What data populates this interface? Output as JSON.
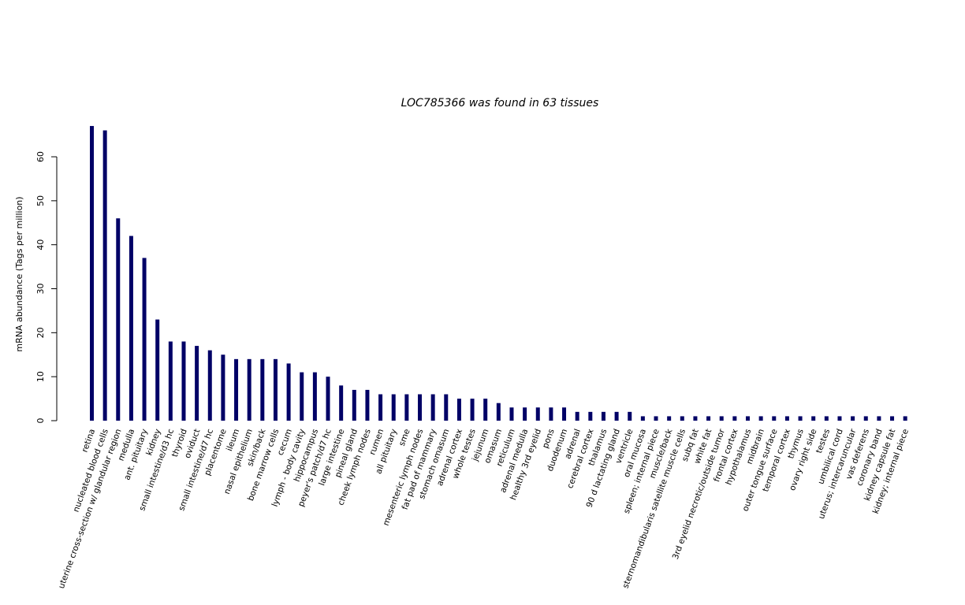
{
  "chart_data": {
    "type": "bar",
    "title": "LOC785366  was found in  63  tissues",
    "ylabel": "mRNA abundance (Tags per million)",
    "xlabel": "",
    "ylim": [
      0,
      67
    ],
    "yticks": [
      0,
      10,
      20,
      30,
      40,
      50,
      60
    ],
    "bar_color": "#000066",
    "grid": false,
    "categories": [
      "retina",
      "nucleated blood cells",
      "uterine cross-section w/ glandular region",
      "medulla",
      "ant. pituitary",
      "kidney",
      "small intestine/d3 hc",
      "thyroid",
      "oviduct",
      "small intestine/d7 hc",
      "placentome",
      "ileum",
      "nasal epithelium",
      "skin/back",
      "bone marrow cells",
      "cecum",
      "lymph - body cavity",
      "hippocampus",
      "peyer's patch/d7 hc",
      "large intestine",
      "pineal gland",
      "cheek lymph nodes",
      "rumen",
      "all pituitary",
      "sme",
      "mesenteric lymph nodes",
      "fat pad of mammary",
      "stomach omasum",
      "adrenal cortex",
      "whole testes",
      "jejunum",
      "omasum",
      "reticulum",
      "adrenal medulla",
      "healthy 3rd eyelid",
      "pons",
      "duodenum",
      "adrenal",
      "cerebral cortex",
      "thalamus",
      "90 d lactating gland",
      "ventricle",
      "oral mucosa",
      "spleen; internal piece",
      "muscle/back",
      "sternomandibularis satellite muscle cells",
      "subq fat",
      "white fat",
      "3rd eyelid necrotic/outside tumor",
      "frontal cortex",
      "hypothalamus",
      "midbrain",
      "outer tongue surface",
      "temporal cortex",
      "thymus",
      "ovary right side",
      "testes",
      "umbilical cord",
      "uterus; intercaruncular",
      "vas deferens",
      "coronary band",
      "kidney capsule fat",
      "kidney; internal piece"
    ],
    "values": [
      67,
      66,
      46,
      42,
      37,
      23,
      18,
      18,
      17,
      16,
      15,
      14,
      14,
      14,
      14,
      13,
      11,
      11,
      10,
      8,
      7,
      7,
      6,
      6,
      6,
      6,
      6,
      6,
      5,
      5,
      5,
      4,
      3,
      3,
      3,
      3,
      3,
      2,
      2,
      2,
      2,
      2,
      1,
      1,
      1,
      1,
      1,
      1,
      1,
      1,
      1,
      1,
      1,
      1,
      1,
      1,
      1,
      1,
      1,
      1,
      1,
      1,
      1
    ]
  }
}
